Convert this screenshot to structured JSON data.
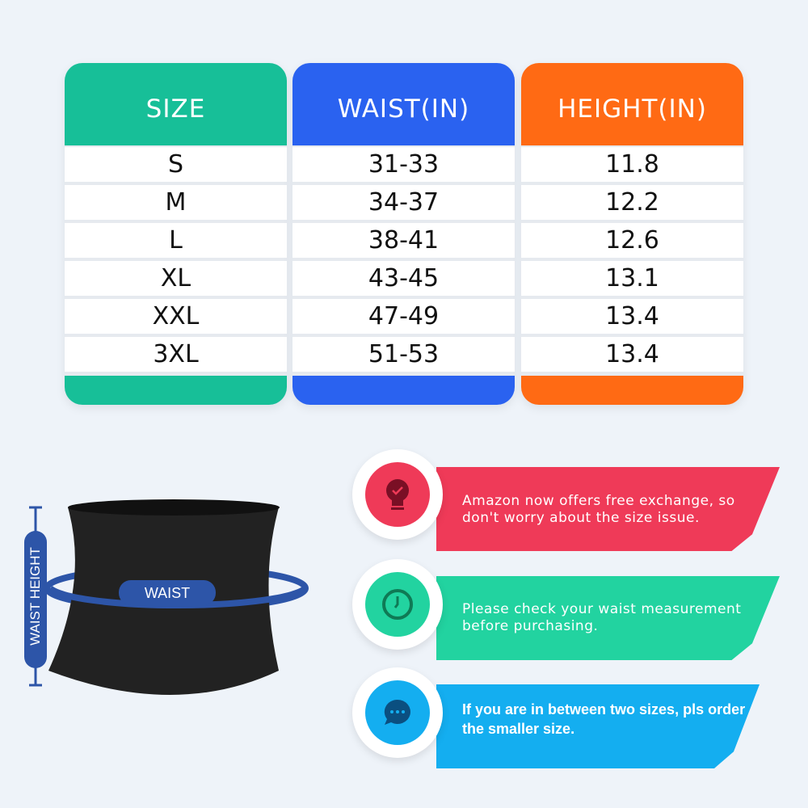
{
  "colors": {
    "size": "#17bf98",
    "waist": "#2a62f0",
    "height": "#ff6a14",
    "background": "#eef3f9",
    "tip1": "#ef3a58",
    "tip2": "#22d3a0",
    "tip3": "#14aef0",
    "label_blue": "#2d55a8"
  },
  "table": {
    "headers": [
      "SIZE",
      "WAIST(IN)",
      "HEIGHT(IN)"
    ],
    "sizes": [
      "S",
      "M",
      "L",
      "XL",
      "XXL",
      "3XL"
    ],
    "waist": [
      "31-33",
      "34-37",
      "38-41",
      "43-45",
      "47-49",
      "51-53"
    ],
    "height": [
      "11.8",
      "12.2",
      "12.6",
      "13.1",
      "13.4",
      "13.4"
    ]
  },
  "diagram": {
    "waist_label": "WAIST",
    "height_label": "WAIST HEIGHT"
  },
  "tips": [
    {
      "icon": "lightbulb-check-icon",
      "text": "Amazon now offers free exchange, so don't worry about the size issue."
    },
    {
      "icon": "clock-icon",
      "text": "Please check your waist measurement before purchasing."
    },
    {
      "icon": "chat-bubble-icon",
      "text": "If you are in between two sizes, pls order the smaller size."
    }
  ]
}
